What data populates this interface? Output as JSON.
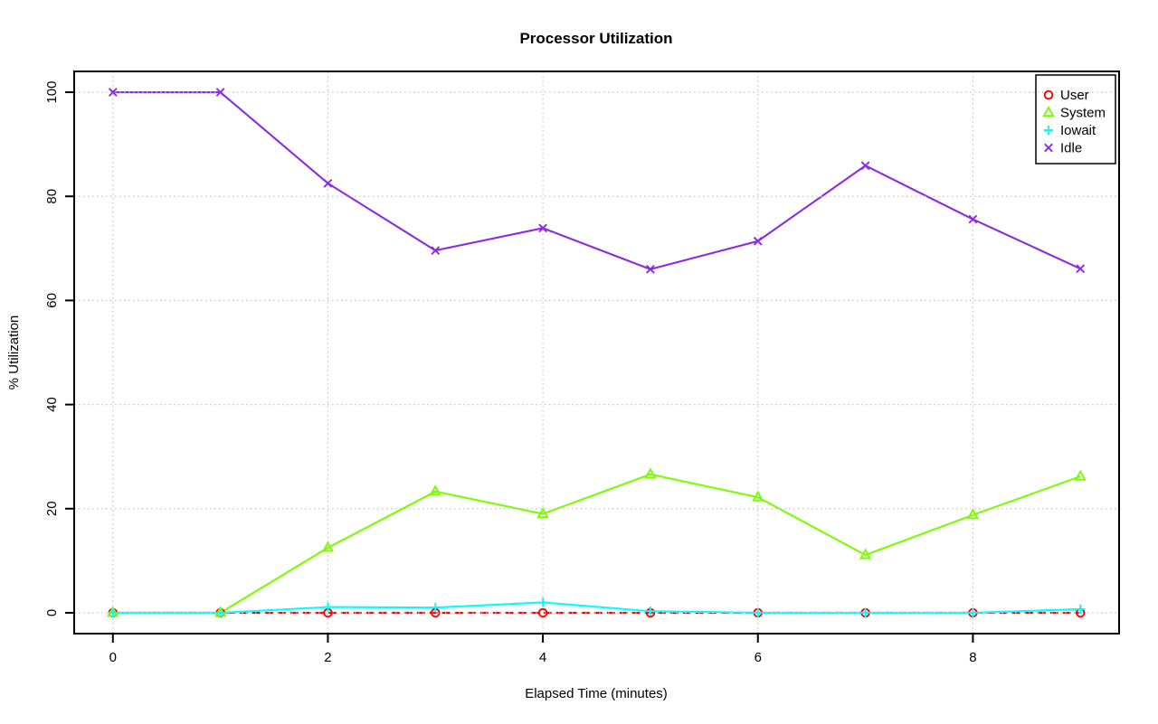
{
  "chart_data": {
    "type": "line",
    "title": "Processor Utilization",
    "xlabel": "Elapsed Time (minutes)",
    "ylabel": "% Utilization",
    "x": [
      0,
      1,
      2,
      3,
      4,
      5,
      6,
      7,
      8,
      9
    ],
    "xlim": [
      0,
      9
    ],
    "ylim": [
      0,
      100
    ],
    "xticks": [
      0,
      2,
      4,
      6,
      8
    ],
    "yticks": [
      0,
      20,
      40,
      60,
      80,
      100
    ],
    "grid": true,
    "grid_style": "dotted",
    "grid_color": "#c8c8c8",
    "legend_position": "top-right",
    "series": [
      {
        "name": "User",
        "color": "#ff0000",
        "marker": "circle",
        "line": "dashed",
        "values": [
          0,
          0,
          0,
          0,
          0,
          0,
          0,
          0,
          0,
          0
        ]
      },
      {
        "name": "System",
        "color": "#7cfc00",
        "marker": "triangle",
        "line": "solid",
        "values": [
          0,
          0,
          12.5,
          23.3,
          19,
          26.6,
          22.2,
          11.1,
          18.8,
          26.2
        ]
      },
      {
        "name": "Iowait",
        "color": "#00ffff",
        "marker": "plus",
        "line": "solid",
        "values": [
          0,
          0,
          1.1,
          1,
          2,
          0.3,
          0,
          0,
          0,
          0.7
        ]
      },
      {
        "name": "Idle",
        "color": "#8a2be2",
        "marker": "x",
        "line": "solid",
        "values": [
          100,
          100,
          82.5,
          69.6,
          73.9,
          66,
          71.4,
          85.9,
          75.6,
          66.1
        ]
      }
    ]
  }
}
